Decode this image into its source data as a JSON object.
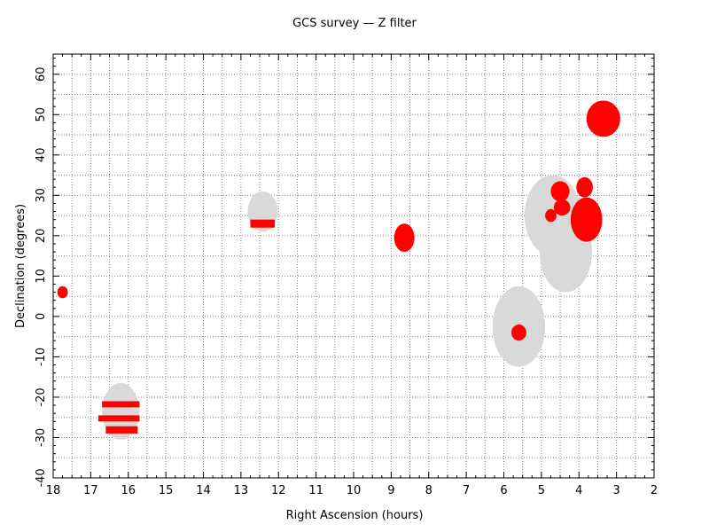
{
  "chart_data": {
    "type": "scatter",
    "title": "GCS survey — Z filter",
    "xlabel": "Right Ascension (hours)",
    "ylabel": "Declination (degrees)",
    "xlim": [
      18,
      2
    ],
    "ylim": [
      -40,
      65
    ],
    "x_ticks": [
      18,
      17,
      16,
      15,
      14,
      13,
      12,
      11,
      10,
      9,
      8,
      7,
      6,
      5,
      4,
      3,
      2
    ],
    "y_ticks": [
      -40,
      -30,
      -20,
      -10,
      0,
      10,
      20,
      30,
      40,
      50,
      60
    ],
    "grid": true,
    "colors": {
      "region": "#d9d9d9",
      "coverage": "#ff0000",
      "grid": "#888888",
      "axis": "#000000"
    },
    "target_regions": [
      {
        "ra": 16.2,
        "dec": -23.5,
        "ra_radius": 0.5,
        "dec_radius": 7
      },
      {
        "ra": 12.42,
        "dec": 26,
        "ra_radius": 0.4,
        "dec_radius": 5
      },
      {
        "ra": 4.7,
        "dec": 25,
        "ra_radius": 0.75,
        "dec_radius": 10
      },
      {
        "ra": 4.35,
        "dec": 16,
        "ra_radius": 0.7,
        "dec_radius": 10
      },
      {
        "ra": 5.6,
        "dec": -2.5,
        "ra_radius": 0.7,
        "dec_radius": 10
      }
    ],
    "coverage_blobs": [
      {
        "ra": 3.35,
        "dec": 49,
        "ra_radius": 0.45,
        "dec_radius": 4.5
      },
      {
        "ra": 3.8,
        "dec": 24,
        "ra_radius": 0.42,
        "dec_radius": 5.5
      },
      {
        "ra": 3.85,
        "dec": 32,
        "ra_radius": 0.22,
        "dec_radius": 2.5
      },
      {
        "ra": 4.5,
        "dec": 31,
        "ra_radius": 0.25,
        "dec_radius": 2.5
      },
      {
        "ra": 4.45,
        "dec": 27,
        "ra_radius": 0.22,
        "dec_radius": 2
      },
      {
        "ra": 4.75,
        "dec": 25,
        "ra_radius": 0.15,
        "dec_radius": 1.6
      },
      {
        "ra": 8.65,
        "dec": 19.5,
        "ra_radius": 0.27,
        "dec_radius": 3.5
      },
      {
        "ra": 5.6,
        "dec": -4,
        "ra_radius": 0.2,
        "dec_radius": 2
      },
      {
        "ra": 17.75,
        "dec": 6,
        "ra_radius": 0.14,
        "dec_radius": 1.5
      }
    ],
    "coverage_strips": [
      {
        "ra_min": 12.1,
        "ra_max": 12.75,
        "dec_min": 22,
        "dec_max": 24
      },
      {
        "ra_min": 15.95,
        "ra_max": 16.7,
        "dec_min": -22.5,
        "dec_max": -21
      },
      {
        "ra_min": 15.7,
        "ra_max": 16.05,
        "dec_min": -22.5,
        "dec_max": -21
      },
      {
        "ra_min": 15.7,
        "ra_max": 16.8,
        "dec_min": -26,
        "dec_max": -24.5
      },
      {
        "ra_min": 15.75,
        "ra_max": 16.6,
        "dec_min": -29,
        "dec_max": -27.2
      }
    ]
  }
}
